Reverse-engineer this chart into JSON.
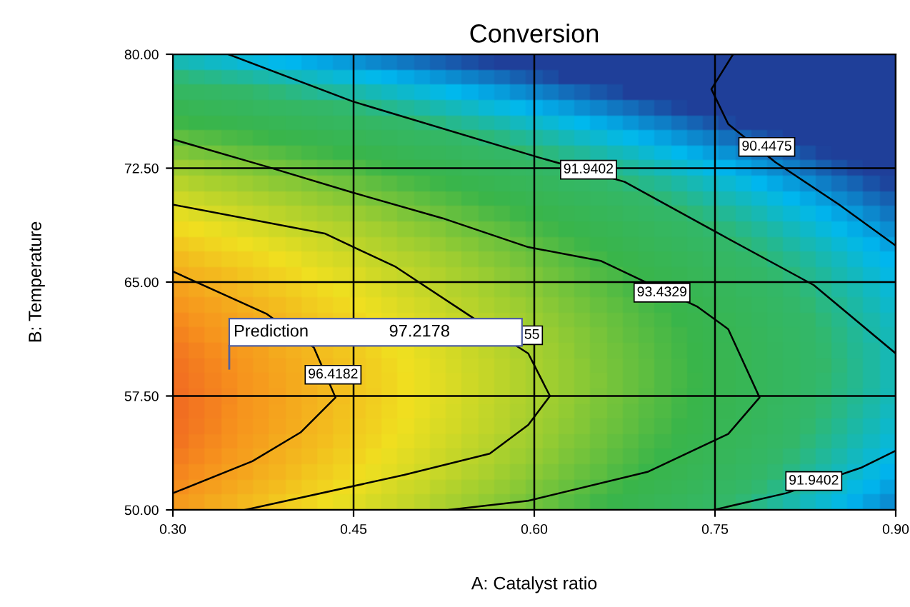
{
  "chart_data": {
    "type": "line",
    "title": "Conversion",
    "xlabel": "A: Catalyst ratio",
    "ylabel": "B: Temperature",
    "xlim": [
      0.3,
      0.9
    ],
    "ylim": [
      50,
      80
    ],
    "xticks": [
      {
        "value": 0.3,
        "label": "0.30"
      },
      {
        "value": 0.45,
        "label": "0.45"
      },
      {
        "value": 0.6,
        "label": "0.60"
      },
      {
        "value": 0.75,
        "label": "0.75"
      },
      {
        "value": 0.9,
        "label": "0.90"
      }
    ],
    "yticks": [
      {
        "value": 50,
        "label": "50.00"
      },
      {
        "value": 57.5,
        "label": "57.50"
      },
      {
        "value": 65,
        "label": "65.00"
      },
      {
        "value": 72.5,
        "label": "72.50"
      },
      {
        "value": 80,
        "label": "80.00"
      }
    ],
    "grid": true,
    "series": [
      {
        "color": "#000000",
        "x": [
          0.3,
          0.366,
          0.406,
          0.435,
          0.417,
          0.378,
          0.3
        ],
        "values": [
          51.1,
          53.2,
          55.1,
          57.4,
          60.7,
          62.9,
          65.7
        ]
      },
      {
        "color": "#000000",
        "x": [
          0.36,
          0.492,
          0.563,
          0.595,
          0.613,
          0.595,
          0.548,
          0.485,
          0.426,
          0.3
        ],
        "values": [
          50,
          52.3,
          53.7,
          55.6,
          57.5,
          60.3,
          62.7,
          66,
          68.2,
          70.1
        ]
      },
      {
        "color": "#000000",
        "x": [
          0.529,
          0.595,
          0.694,
          0.761,
          0.787,
          0.761,
          0.735,
          0.655,
          0.595,
          0.524,
          0.449,
          0.378,
          0.3
        ],
        "values": [
          50,
          50.6,
          52.5,
          55,
          57.4,
          61.9,
          63.4,
          66.4,
          67.3,
          69.2,
          70.9,
          72.6,
          74.4
        ]
      },
      {
        "color": "#000000",
        "x": [
          0.346,
          0.449,
          0.604,
          0.675,
          0.753,
          0.832,
          0.9,
          null,
          0.749,
          0.809,
          0.872,
          0.9
        ],
        "values": [
          80,
          76.9,
          73.2,
          71.6,
          68.2,
          64.8,
          60.3,
          null,
          50,
          51.1,
          52.8,
          53.9
        ]
      },
      {
        "color": "#000000",
        "x": [
          0.765,
          0.747,
          0.761,
          0.8,
          0.853,
          0.9
        ],
        "values": [
          80,
          77.7,
          75.4,
          72.9,
          70.1,
          67.4
        ]
      }
    ],
    "annotations": [
      {
        "text": "96.4182",
        "x": 0.433,
        "y": 58.9
      },
      {
        "text": "55",
        "x": 0.598,
        "y": 61.5
      },
      {
        "text": "93.4329",
        "x": 0.706,
        "y": 64.3
      },
      {
        "text": "91.9402",
        "x": 0.645,
        "y": 72.4
      },
      {
        "text": "90.4475",
        "x": 0.793,
        "y": 73.9
      },
      {
        "text": "91.9402",
        "x": 0.832,
        "y": 51.9
      },
      "Prediction",
      "97.2178"
    ]
  }
}
